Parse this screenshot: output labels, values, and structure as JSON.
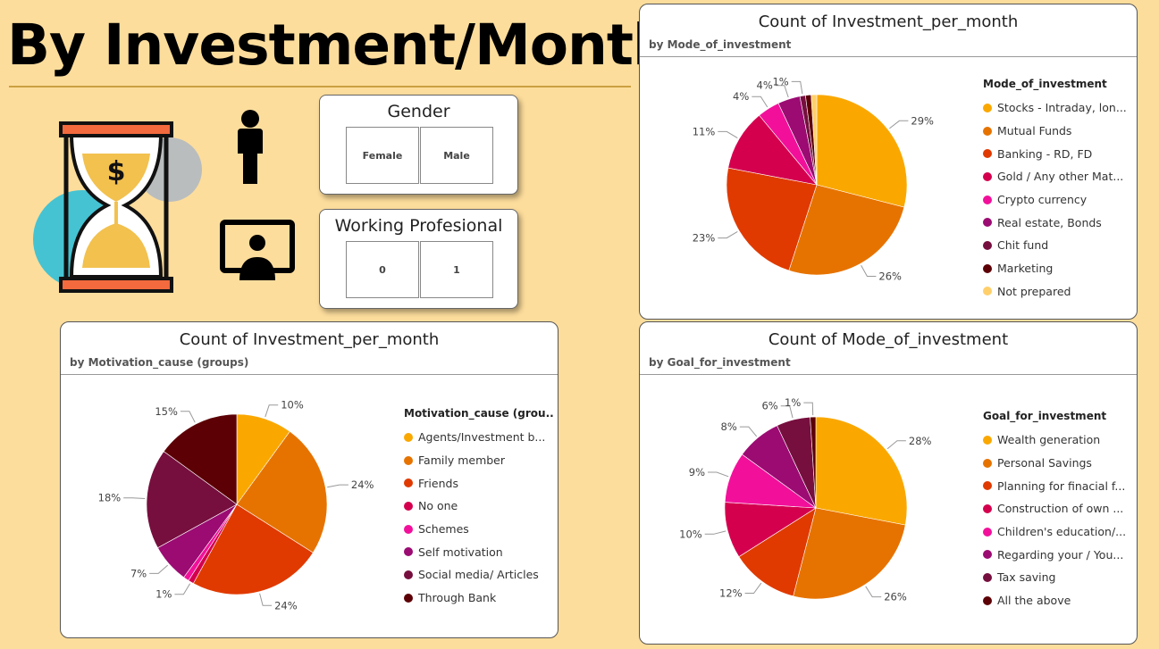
{
  "page_title": "By Investment/Month",
  "slicers": {
    "gender": {
      "title": "Gender",
      "options": [
        "Female",
        "Male"
      ]
    },
    "working": {
      "title": "Working Profesional",
      "options": [
        "0",
        "1"
      ]
    }
  },
  "icons": {
    "hourglass": "hourglass-money-icon",
    "person": "person-icon",
    "monitor": "monitor-user-icon"
  },
  "chart_data": [
    {
      "type": "pie",
      "title": "Count of Investment_per_month",
      "subtitle": "by Mode_of_investment",
      "legend_title": "Mode_of_investment",
      "categories": [
        "Stocks - Intraday, lon...",
        "Mutual Funds",
        "Banking - RD, FD",
        "Gold / Any other Mat...",
        "Crypto currency",
        "Real estate, Bonds",
        "Chit fund",
        "Marketing",
        "Not prepared"
      ],
      "values": [
        29,
        26,
        23,
        11,
        4,
        4,
        1,
        1,
        1
      ],
      "data_labels": [
        "29%",
        "26%",
        "23%",
        "11%",
        "4%",
        "4%",
        "1%",
        "",
        ""
      ],
      "colors": [
        "#FAA800",
        "#E67300",
        "#E03A00",
        "#D4004E",
        "#F2109B",
        "#9B0B72",
        "#760F3E",
        "#5C0006",
        "#FFCF6B"
      ]
    },
    {
      "type": "pie",
      "title": "Count of Investment_per_month",
      "subtitle": "by Motivation_cause (groups)",
      "legend_title": "Motivation_cause (grou...",
      "categories": [
        "Agents/Investment b...",
        "Family member",
        "Friends",
        "No one",
        "Schemes",
        "Self motivation",
        "Social media/ Articles",
        "Through Bank"
      ],
      "values": [
        10,
        24,
        24,
        1,
        1,
        7,
        18,
        15
      ],
      "data_labels": [
        "10%",
        "24%",
        "24%",
        "1%",
        "",
        "7%",
        "18%",
        "15%"
      ],
      "colors": [
        "#FAA800",
        "#E67300",
        "#E03A00",
        "#D4004E",
        "#F2109B",
        "#9B0B72",
        "#760F3E",
        "#5C0006"
      ]
    },
    {
      "type": "pie",
      "title": "Count of Mode_of_investment",
      "subtitle": "by Goal_for_investment",
      "legend_title": "Goal_for_investment",
      "categories": [
        "Wealth generation",
        "Personal Savings",
        "Planning for finacial f...",
        "Construction of own ...",
        "Children's education/...",
        "Regarding your / You...",
        "Tax saving",
        "All the above"
      ],
      "values": [
        28,
        26,
        12,
        10,
        9,
        8,
        6,
        1
      ],
      "data_labels": [
        "28%",
        "26%",
        "12%",
        "10%",
        "9%",
        "8%",
        "6%",
        "1%"
      ],
      "colors": [
        "#FAA800",
        "#E67300",
        "#E03A00",
        "#D4004E",
        "#F2109B",
        "#9B0B72",
        "#760F3E",
        "#5C0006"
      ]
    }
  ]
}
